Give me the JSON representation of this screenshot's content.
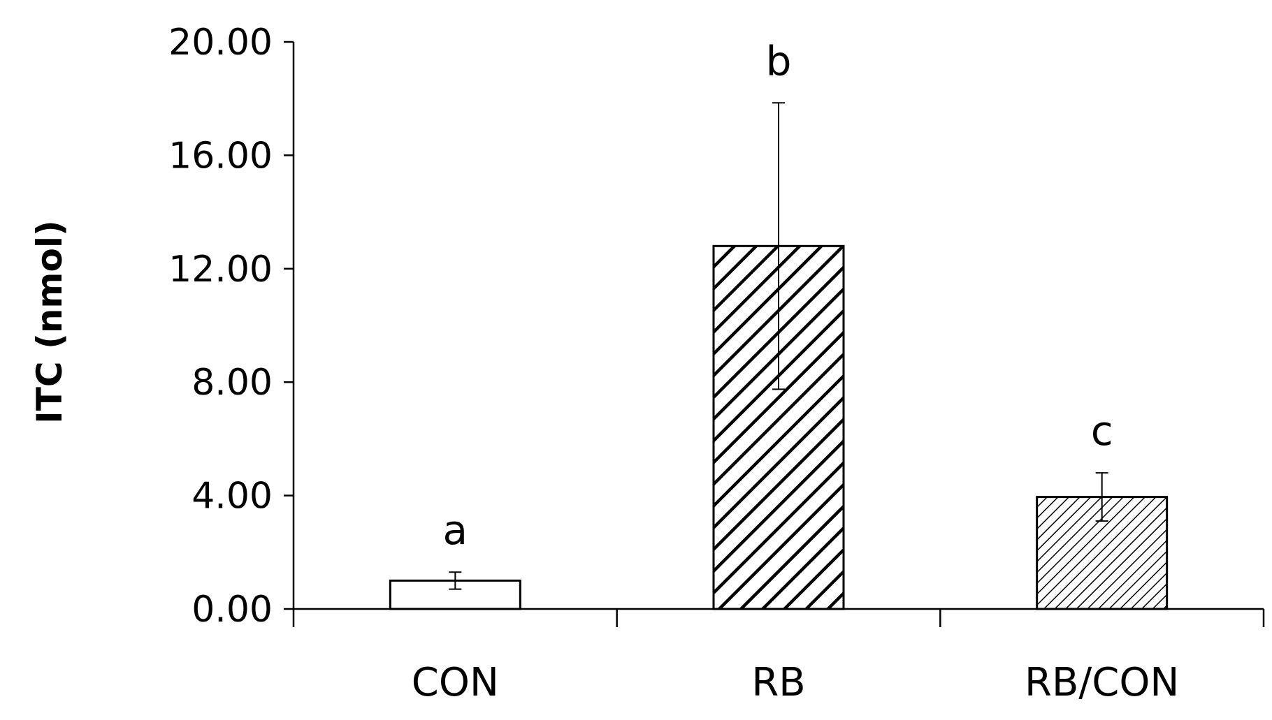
{
  "chart_data": {
    "type": "bar",
    "title": "",
    "xlabel": "",
    "ylabel": "ITC (nmol)",
    "ylim": [
      0,
      20
    ],
    "yticks": [
      "0.00",
      "4.00",
      "8.00",
      "12.00",
      "16.00",
      "20.00"
    ],
    "categories": [
      "CON",
      "RB",
      "RB/CON"
    ],
    "values": [
      1.0,
      12.8,
      3.95
    ],
    "errors": [
      0.3,
      5.05,
      0.85
    ],
    "significance_labels": [
      "a",
      "b",
      "c"
    ],
    "bar_fills": [
      "none",
      "dense-diagonal-hatch",
      "fine-diagonal-hatch"
    ],
    "grid": false,
    "legend": "none",
    "colors": {
      "bar_edge": "#000000",
      "bar_background": "#ffffff",
      "axis": "#000000"
    }
  }
}
